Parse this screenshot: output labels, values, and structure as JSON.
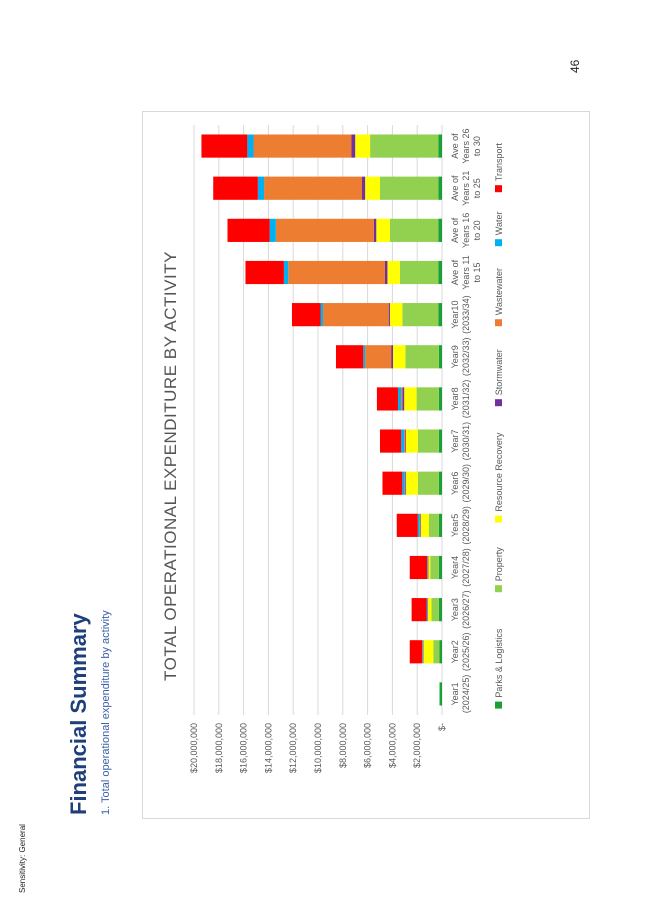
{
  "header": {
    "sensitivity": "Sensitivity: General"
  },
  "page": {
    "title": "Financial Summary",
    "subtitle": "1.   Total operational expenditure by activity",
    "page_number": "46"
  },
  "chart_data": {
    "type": "bar",
    "stacked": true,
    "title": "TOTAL OPERATIONAL EXPENDITURE BY ACTIVITY",
    "xlabel": "",
    "ylabel": "",
    "ylim": [
      0,
      20000000
    ],
    "y_ticks": [
      0,
      2000000,
      4000000,
      6000000,
      8000000,
      10000000,
      12000000,
      14000000,
      16000000,
      18000000,
      20000000
    ],
    "y_tick_labels": [
      "$-",
      "$2,000,000",
      "$4,000,000",
      "$6,000,000",
      "$8,000,000",
      "$10,000,000",
      "$12,000,000",
      "$14,000,000",
      "$16,000,000",
      "$18,000,000",
      "$20,000,000"
    ],
    "grid": true,
    "legend_position": "bottom",
    "categories": [
      [
        "Year1",
        "(2024/25)"
      ],
      [
        "Year2",
        "(2025/26)"
      ],
      [
        "Year3",
        "(2026/27)"
      ],
      [
        "Year4",
        "(2027/28)"
      ],
      [
        "Year5",
        "(2028/29)"
      ],
      [
        "Year6",
        "(2029/30)"
      ],
      [
        "Year7",
        "(2030/31)"
      ],
      [
        "Year8",
        "(2031/32)"
      ],
      [
        "Year9",
        "(2032/33)"
      ],
      [
        "Year10",
        "(2033/34)"
      ],
      [
        "Ave of",
        "Years 11",
        "to 15"
      ],
      [
        "Ave of",
        "Years 16",
        "to 20"
      ],
      [
        "Ave of",
        "Years 21",
        "to 25"
      ],
      [
        "Ave of",
        "Years 26",
        "to 30"
      ]
    ],
    "series": [
      {
        "name": "Parks & Logistics",
        "color": "#1aa037",
        "values": [
          200000,
          200000,
          250000,
          250000,
          250000,
          250000,
          250000,
          250000,
          250000,
          300000,
          300000,
          300000,
          300000,
          300000
        ]
      },
      {
        "name": "Property",
        "color": "#92d050",
        "values": [
          0,
          500000,
          600000,
          700000,
          800000,
          1700000,
          1700000,
          1800000,
          2700000,
          2900000,
          3100000,
          3900000,
          4700000,
          5500000
        ]
      },
      {
        "name": "Resource Recovery",
        "color": "#ffff00",
        "values": [
          0,
          800000,
          300000,
          150000,
          650000,
          950000,
          950000,
          1000000,
          1000000,
          1000000,
          1000000,
          1100000,
          1200000,
          1200000
        ]
      },
      {
        "name": "Stormwater",
        "color": "#7030a0",
        "values": [
          0,
          50000,
          50000,
          50000,
          50000,
          50000,
          50000,
          150000,
          150000,
          100000,
          200000,
          200000,
          250000,
          300000
        ]
      },
      {
        "name": "Wastewater",
        "color": "#ed7d31",
        "values": [
          0,
          0,
          0,
          0,
          50000,
          50000,
          100000,
          100000,
          2100000,
          5300000,
          7800000,
          7900000,
          7900000,
          7900000
        ]
      },
      {
        "name": "Water",
        "color": "#00b0f0",
        "values": [
          0,
          50000,
          50000,
          50000,
          150000,
          200000,
          250000,
          250000,
          150000,
          200000,
          350000,
          500000,
          500000,
          500000
        ]
      },
      {
        "name": "Transport",
        "color": "#ff0000",
        "values": [
          0,
          1000000,
          1200000,
          1400000,
          1700000,
          1600000,
          1700000,
          1700000,
          2200000,
          2300000,
          3100000,
          3400000,
          3600000,
          3700000
        ]
      }
    ]
  }
}
